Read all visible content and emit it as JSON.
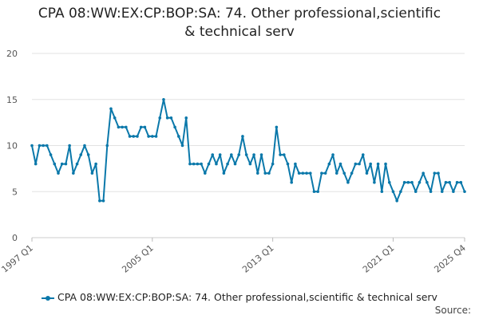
{
  "chart_data": {
    "type": "line",
    "title_line1": "CPA 08:WW:EX:CP:BOP:SA: 74. Other professional,scientific",
    "title_line2": "& technical serv",
    "xlabel": "",
    "ylabel": "",
    "ylim": [
      0,
      20
    ],
    "yticks": [
      0,
      5,
      10,
      15,
      20
    ],
    "x_tick_labels": [
      "1997 Q1",
      "2005 Q1",
      "2013 Q1",
      "2021 Q1",
      "2025 Q4"
    ],
    "x_tick_index": [
      0,
      32,
      64,
      96,
      115
    ],
    "grid": true,
    "legend_position": "bottom",
    "color": "#0a78aa",
    "series": [
      {
        "name": "CPA 08:WW:EX:CP:BOP:SA: 74. Other professional,scientific & technical serv",
        "values": [
          10,
          8,
          10,
          10,
          10,
          9,
          8,
          7,
          8,
          8,
          10,
          7,
          8,
          9,
          10,
          9,
          7,
          8,
          4,
          4,
          10,
          14,
          13,
          12,
          12,
          12,
          11,
          11,
          11,
          12,
          12,
          11,
          11,
          11,
          13,
          15,
          13,
          13,
          12,
          11,
          10,
          13,
          8,
          8,
          8,
          8,
          7,
          8,
          9,
          8,
          9,
          7,
          8,
          9,
          8,
          9,
          11,
          9,
          8,
          9,
          7,
          9,
          7,
          7,
          8,
          12,
          9,
          9,
          8,
          6,
          8,
          7,
          7,
          7,
          7,
          5,
          5,
          7,
          7,
          8,
          9,
          7,
          8,
          7,
          6,
          7,
          8,
          8,
          9,
          7,
          8,
          6,
          8,
          5,
          8,
          6,
          5,
          4,
          5,
          6,
          6,
          6,
          5,
          6,
          7,
          6,
          5,
          7,
          7,
          5,
          6,
          6,
          5,
          6,
          6,
          5
        ]
      }
    ]
  },
  "source_label": "Source:"
}
